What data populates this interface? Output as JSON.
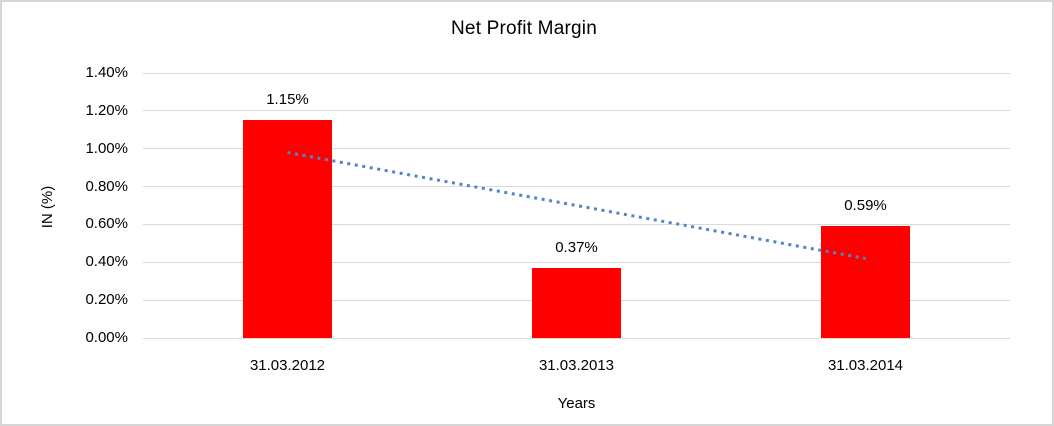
{
  "chart_data": {
    "type": "bar",
    "title": "Net Profit Margin",
    "categories": [
      "31.03.2012",
      "31.03.2013",
      "31.03.2014"
    ],
    "values": [
      1.15,
      0.37,
      0.59
    ],
    "data_labels": [
      "1.15%",
      "0.37%",
      "0.59%"
    ],
    "xlabel": "Years",
    "ylabel": "IN (%)",
    "ylim": [
      0,
      1.4
    ],
    "ytick_step": 0.2,
    "yticks": [
      "1.40%",
      "1.20%",
      "1.00%",
      "0.80%",
      "0.60%",
      "0.40%",
      "0.20%",
      "0.00%"
    ],
    "grid": true,
    "legend": "none",
    "colors": {
      "bar": "#ff0000",
      "gridline": "#d9d9d9",
      "trendline": "#4e87c8",
      "text": "#000000",
      "frame_border": "#d6d6d6"
    },
    "trendline": {
      "style": "dotted",
      "start_value": 0.98,
      "end_value": 0.42,
      "spans_categories": [
        1,
        3
      ]
    }
  }
}
